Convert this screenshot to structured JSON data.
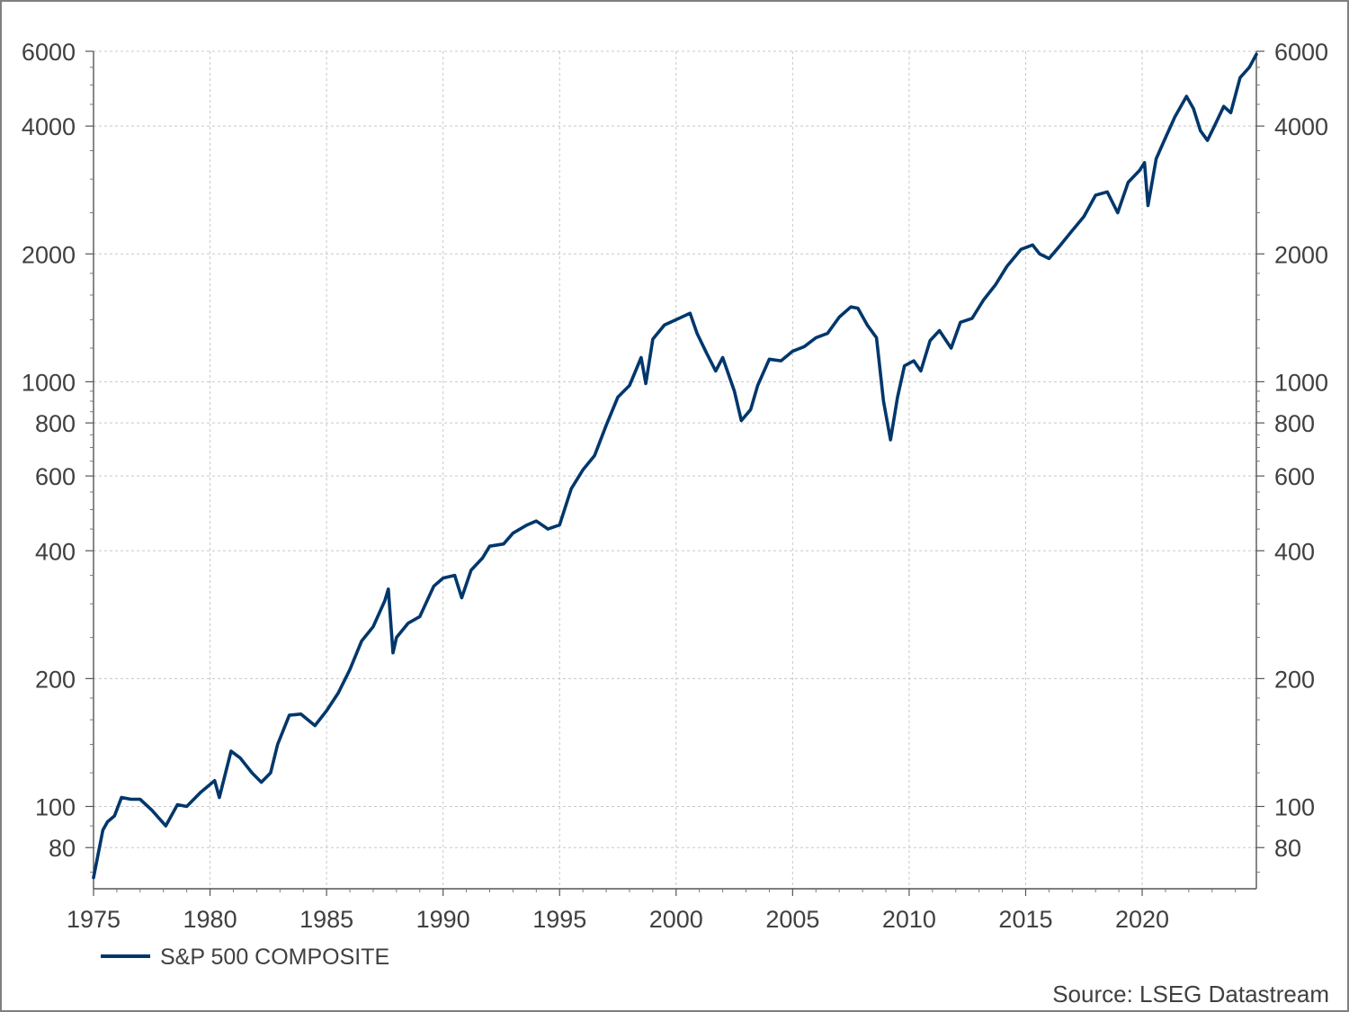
{
  "chart_data": {
    "type": "line",
    "title": "",
    "xlabel": "",
    "ylabel": "",
    "x_scale": "linear",
    "y_scale": "log",
    "xlim": [
      1975,
      2024.9
    ],
    "ylim": [
      64,
      6000
    ],
    "x_ticks": [
      1975,
      1980,
      1985,
      1990,
      1995,
      2000,
      2005,
      2010,
      2015,
      2020
    ],
    "y_ticks": [
      80,
      100,
      200,
      400,
      600,
      800,
      1000,
      2000,
      4000,
      6000
    ],
    "y_axis_sides": "left-and-right",
    "grid": true,
    "legend_position": "bottom-left",
    "line_color": "#00376b",
    "series": [
      {
        "name": "S&P 500 COMPOSITE",
        "x": [
          1975.0,
          1975.4,
          1975.6,
          1975.9,
          1976.2,
          1976.6,
          1977.0,
          1977.5,
          1978.1,
          1978.6,
          1979.0,
          1979.6,
          1980.2,
          1980.4,
          1980.9,
          1981.3,
          1981.8,
          1982.2,
          1982.6,
          1982.9,
          1983.4,
          1983.9,
          1984.5,
          1985.0,
          1985.5,
          1986.0,
          1986.5,
          1987.0,
          1987.5,
          1987.65,
          1987.85,
          1988.0,
          1988.5,
          1989.0,
          1989.6,
          1990.0,
          1990.5,
          1990.8,
          1991.2,
          1991.7,
          1992.0,
          1992.6,
          1993.0,
          1993.6,
          1994.0,
          1994.5,
          1995.0,
          1995.5,
          1996.0,
          1996.5,
          1997.0,
          1997.5,
          1998.0,
          1998.5,
          1998.7,
          1999.0,
          1999.5,
          2000.0,
          2000.6,
          2000.9,
          2001.3,
          2001.7,
          2002.0,
          2002.5,
          2002.8,
          2003.2,
          2003.5,
          2004.0,
          2004.5,
          2005.0,
          2005.5,
          2006.0,
          2006.5,
          2007.0,
          2007.5,
          2007.8,
          2008.2,
          2008.6,
          2008.9,
          2009.2,
          2009.5,
          2009.8,
          2010.2,
          2010.5,
          2010.9,
          2011.3,
          2011.8,
          2012.2,
          2012.7,
          2013.2,
          2013.7,
          2014.2,
          2014.8,
          2015.3,
          2015.6,
          2016.0,
          2016.5,
          2017.0,
          2017.5,
          2018.0,
          2018.5,
          2018.95,
          2019.4,
          2019.9,
          2020.1,
          2020.25,
          2020.6,
          2020.95,
          2021.4,
          2021.9,
          2022.2,
          2022.5,
          2022.8,
          2023.1,
          2023.5,
          2023.8,
          2024.2,
          2024.6,
          2024.9
        ],
        "values": [
          68,
          88,
          92,
          95,
          105,
          104,
          104,
          98,
          90,
          101,
          100,
          108,
          115,
          105,
          135,
          130,
          120,
          114,
          120,
          140,
          164,
          165,
          155,
          168,
          185,
          210,
          245,
          265,
          305,
          325,
          230,
          250,
          270,
          280,
          330,
          345,
          350,
          310,
          360,
          385,
          410,
          415,
          440,
          460,
          470,
          450,
          460,
          560,
          620,
          670,
          790,
          920,
          980,
          1140,
          990,
          1260,
          1360,
          1400,
          1450,
          1300,
          1170,
          1060,
          1140,
          950,
          810,
          860,
          980,
          1130,
          1120,
          1180,
          1210,
          1270,
          1300,
          1420,
          1500,
          1490,
          1360,
          1270,
          900,
          730,
          920,
          1090,
          1120,
          1060,
          1250,
          1320,
          1200,
          1380,
          1410,
          1560,
          1690,
          1870,
          2050,
          2100,
          2000,
          1950,
          2100,
          2270,
          2450,
          2750,
          2800,
          2500,
          2950,
          3150,
          3280,
          2600,
          3350,
          3700,
          4200,
          4700,
          4400,
          3900,
          3700,
          4000,
          4450,
          4300,
          5200,
          5500,
          5900
        ]
      }
    ],
    "legend": {
      "label": "S&P 500 COMPOSITE"
    },
    "source": "Source: LSEG Datastream"
  }
}
